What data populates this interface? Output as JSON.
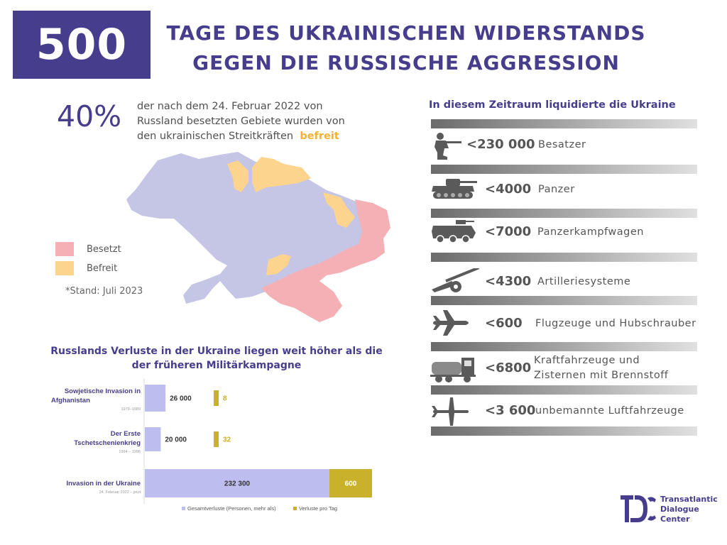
{
  "header": {
    "badge": "500",
    "title_line1": "TAGE DES UKRAINISCHEN WIDERSTANDS",
    "title_line2": "GEGEN DIE RUSSISCHE AGGRESSION"
  },
  "occupied": {
    "percent": "40%",
    "text_line1": "der nach dem 24. Februar 2022 von",
    "text_line2": "Russland besetzten Gebiete wurden von",
    "text_line3_pre": "den ukrainischen Streitkräften",
    "text_highlight": "befreit"
  },
  "legend": {
    "occupied_label": "Besetzt",
    "liberated_label": "Befreit",
    "stand": "*Stand: Juli 2023"
  },
  "colors": {
    "brand": "#463e8c",
    "occupied": "#f4b0b4",
    "liberated": "#fdd48e",
    "territory": "#c5c5e6",
    "bar_total": "#bdbdf0",
    "bar_day": "#c9b12c"
  },
  "losses_chart": {
    "title_line1": "Russlands Verluste in der Ukraine liegen weit höher als die",
    "title_line2": "der früheren Militärkampagne",
    "legend_total": "Gesamtverluste (Personen, mehr als)",
    "legend_day": "Verluste pro Tag",
    "rows": [
      {
        "name_line1": "Sowjetische Invasion in",
        "name_line2": "Afghanistan",
        "period": "1979–1989",
        "total": 26000,
        "total_label": "26 000",
        "per_day": 8,
        "per_day_label": "8"
      },
      {
        "name_line1": "Der Erste",
        "name_line2": "Tschetschenienkrieg",
        "period": "1994 – 1996",
        "total": 20000,
        "total_label": "20 000",
        "per_day": 32,
        "per_day_label": "32"
      },
      {
        "name_line1": "Invasion in der Ukraine",
        "name_line2": "",
        "period": "24. Februar 2022 – jetzt",
        "total": 232300,
        "total_label": "232 300",
        "per_day": 600,
        "per_day_label": "600"
      }
    ]
  },
  "liquidated": {
    "title": "In diesem Zeitraum liquidierte die Ukraine",
    "items": [
      {
        "icon": "soldier-icon",
        "value": "<230 000",
        "label": "Besatzer",
        "label2": ""
      },
      {
        "icon": "tank-icon",
        "value": "<4000",
        "label": "Panzer",
        "label2": ""
      },
      {
        "icon": "apc-icon",
        "value": "<7000",
        "label": "Panzerkampfwagen",
        "label2": ""
      },
      {
        "icon": "artillery-icon",
        "value": "<4300",
        "label": "Artilleriesysteme",
        "label2": ""
      },
      {
        "icon": "airplane-icon",
        "value": "<600",
        "label": "Flugzeuge und Hubschrauber",
        "label2": ""
      },
      {
        "icon": "truck-icon",
        "value": "<6800",
        "label": "Kraftfahrzeuge und",
        "label2": "Zisternen mit Brennstoff"
      },
      {
        "icon": "drone-icon",
        "value": "<3 600",
        "label": "unbemannte Luftfahrzeuge",
        "label2": ""
      }
    ]
  },
  "logo": {
    "line1": "Transatlantic",
    "line2": "Dialogue",
    "line3": "Center"
  }
}
